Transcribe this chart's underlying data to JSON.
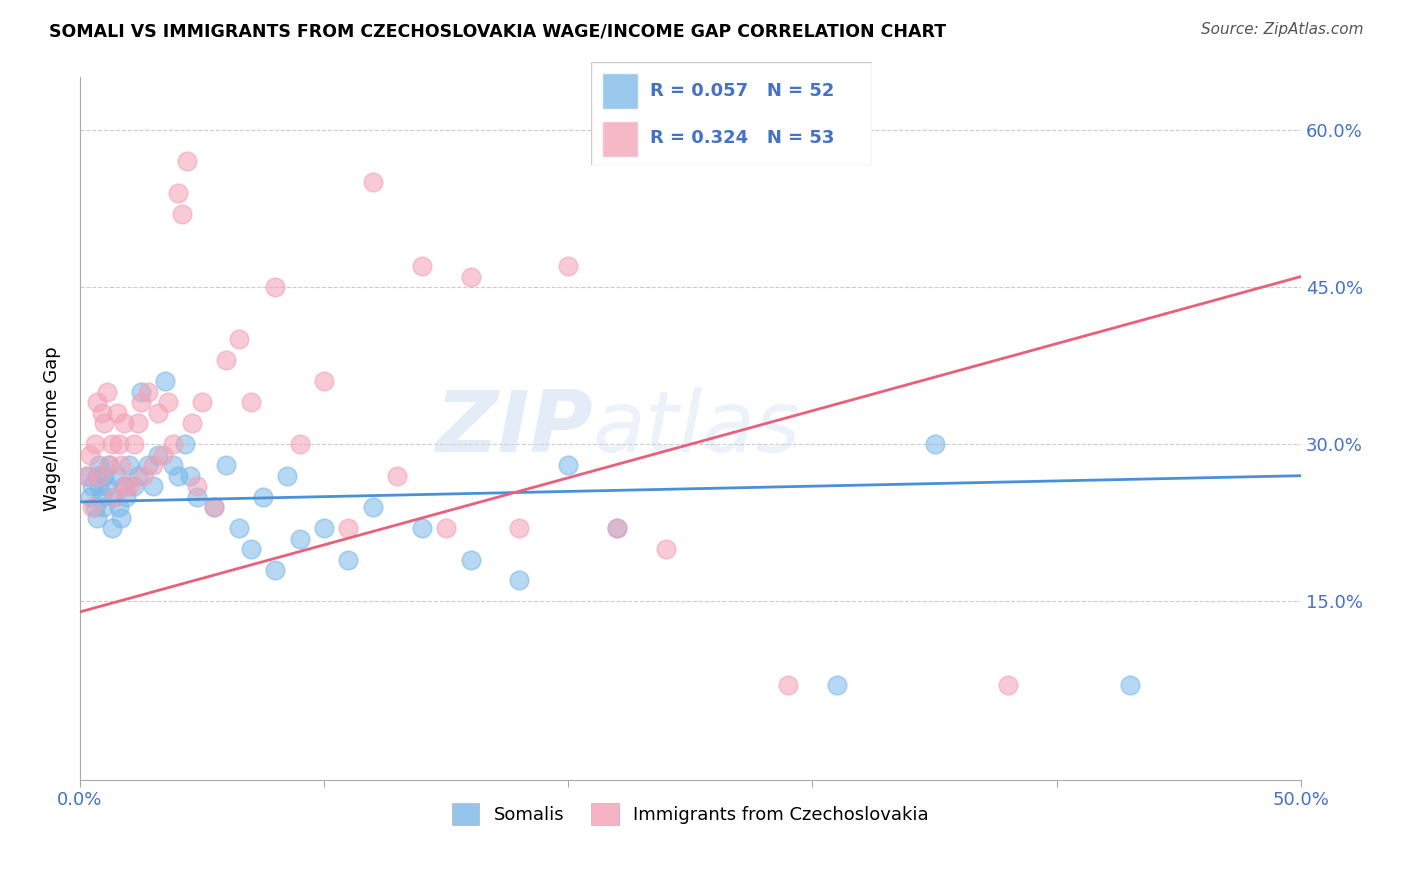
{
  "title": "SOMALI VS IMMIGRANTS FROM CZECHOSLOVAKIA WAGE/INCOME GAP CORRELATION CHART",
  "source": "Source: ZipAtlas.com",
  "ylabel": "Wage/Income Gap",
  "xlim": [
    0.0,
    0.5
  ],
  "ylim": [
    -0.02,
    0.65
  ],
  "yticks": [
    0.15,
    0.3,
    0.45,
    0.6
  ],
  "yticklabels": [
    "15.0%",
    "30.0%",
    "45.0%",
    "60.0%"
  ],
  "legend_labels": [
    "Somalis",
    "Immigrants from Czechoslovakia"
  ],
  "somali_color": "#7ab8e8",
  "czech_color": "#f4a0b5",
  "somali_line_color": "#4a90d9",
  "czech_line_color": "#e8607a",
  "watermark_zip": "ZIP",
  "watermark_atlas": "atlas",
  "somali_x": [
    0.003,
    0.004,
    0.005,
    0.006,
    0.007,
    0.007,
    0.008,
    0.008,
    0.009,
    0.01,
    0.01,
    0.011,
    0.012,
    0.013,
    0.014,
    0.015,
    0.016,
    0.017,
    0.018,
    0.019,
    0.02,
    0.022,
    0.024,
    0.025,
    0.028,
    0.03,
    0.032,
    0.035,
    0.038,
    0.04,
    0.043,
    0.045,
    0.048,
    0.055,
    0.06,
    0.065,
    0.07,
    0.075,
    0.08,
    0.085,
    0.09,
    0.1,
    0.11,
    0.12,
    0.14,
    0.16,
    0.18,
    0.2,
    0.22,
    0.31,
    0.35,
    0.43
  ],
  "somali_y": [
    0.27,
    0.25,
    0.26,
    0.24,
    0.27,
    0.23,
    0.26,
    0.28,
    0.25,
    0.27,
    0.24,
    0.26,
    0.28,
    0.22,
    0.25,
    0.27,
    0.24,
    0.23,
    0.26,
    0.25,
    0.28,
    0.26,
    0.27,
    0.35,
    0.28,
    0.26,
    0.29,
    0.36,
    0.28,
    0.27,
    0.3,
    0.27,
    0.25,
    0.24,
    0.28,
    0.22,
    0.2,
    0.25,
    0.18,
    0.27,
    0.21,
    0.22,
    0.19,
    0.24,
    0.22,
    0.19,
    0.17,
    0.28,
    0.22,
    0.07,
    0.3,
    0.07
  ],
  "czech_x": [
    0.003,
    0.004,
    0.005,
    0.006,
    0.007,
    0.008,
    0.009,
    0.01,
    0.011,
    0.012,
    0.013,
    0.014,
    0.015,
    0.016,
    0.017,
    0.018,
    0.019,
    0.02,
    0.022,
    0.024,
    0.025,
    0.026,
    0.028,
    0.03,
    0.032,
    0.034,
    0.036,
    0.038,
    0.04,
    0.042,
    0.044,
    0.046,
    0.048,
    0.05,
    0.055,
    0.06,
    0.065,
    0.07,
    0.08,
    0.09,
    0.1,
    0.11,
    0.12,
    0.13,
    0.14,
    0.15,
    0.16,
    0.18,
    0.2,
    0.22,
    0.24,
    0.29,
    0.38
  ],
  "czech_y": [
    0.27,
    0.29,
    0.24,
    0.3,
    0.34,
    0.27,
    0.33,
    0.32,
    0.35,
    0.28,
    0.3,
    0.25,
    0.33,
    0.3,
    0.28,
    0.32,
    0.26,
    0.26,
    0.3,
    0.32,
    0.34,
    0.27,
    0.35,
    0.28,
    0.33,
    0.29,
    0.34,
    0.3,
    0.54,
    0.52,
    0.57,
    0.32,
    0.26,
    0.34,
    0.24,
    0.38,
    0.4,
    0.34,
    0.45,
    0.3,
    0.36,
    0.22,
    0.55,
    0.27,
    0.47,
    0.22,
    0.46,
    0.22,
    0.47,
    0.22,
    0.2,
    0.07,
    0.07
  ]
}
